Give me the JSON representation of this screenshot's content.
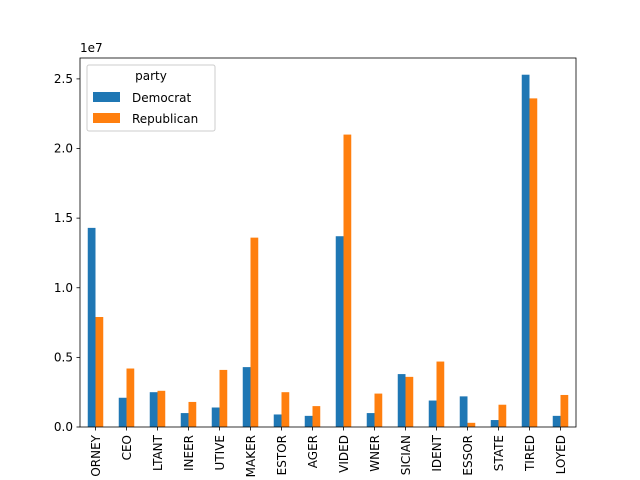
{
  "chart_data": {
    "type": "bar",
    "title": "",
    "xlabel": "",
    "ylabel": "",
    "offset_label": "1e7",
    "ylim": [
      0,
      26500000
    ],
    "yticks": [
      0,
      5000000,
      10000000,
      15000000,
      20000000,
      25000000
    ],
    "ytick_labels": [
      "0.0",
      "0.5",
      "1.0",
      "1.5",
      "2.0",
      "2.5"
    ],
    "categories": [
      "ORNEY",
      "CEO",
      "LTANT",
      "INEER",
      "UTIVE",
      "MAKER",
      "ESTOR",
      "AGER",
      "VIDED",
      "WNER",
      "SICIAN",
      "IDENT",
      "ESSOR",
      "STATE",
      "TIRED",
      "LOYED"
    ],
    "legend": {
      "title": "party",
      "position": "upper-left"
    },
    "series": [
      {
        "name": "Democrat",
        "color": "#1f77b4",
        "values": [
          14300000,
          2100000,
          2500000,
          1000000,
          1400000,
          4300000,
          900000,
          800000,
          13700000,
          1000000,
          3800000,
          1900000,
          2200000,
          500000,
          25300000,
          800000
        ]
      },
      {
        "name": "Republican",
        "color": "#ff7f0e",
        "values": [
          7900000,
          4200000,
          2600000,
          1800000,
          4100000,
          13600000,
          2500000,
          1500000,
          21000000,
          2400000,
          3600000,
          4700000,
          300000,
          1600000,
          23600000,
          2300000
        ]
      }
    ]
  }
}
